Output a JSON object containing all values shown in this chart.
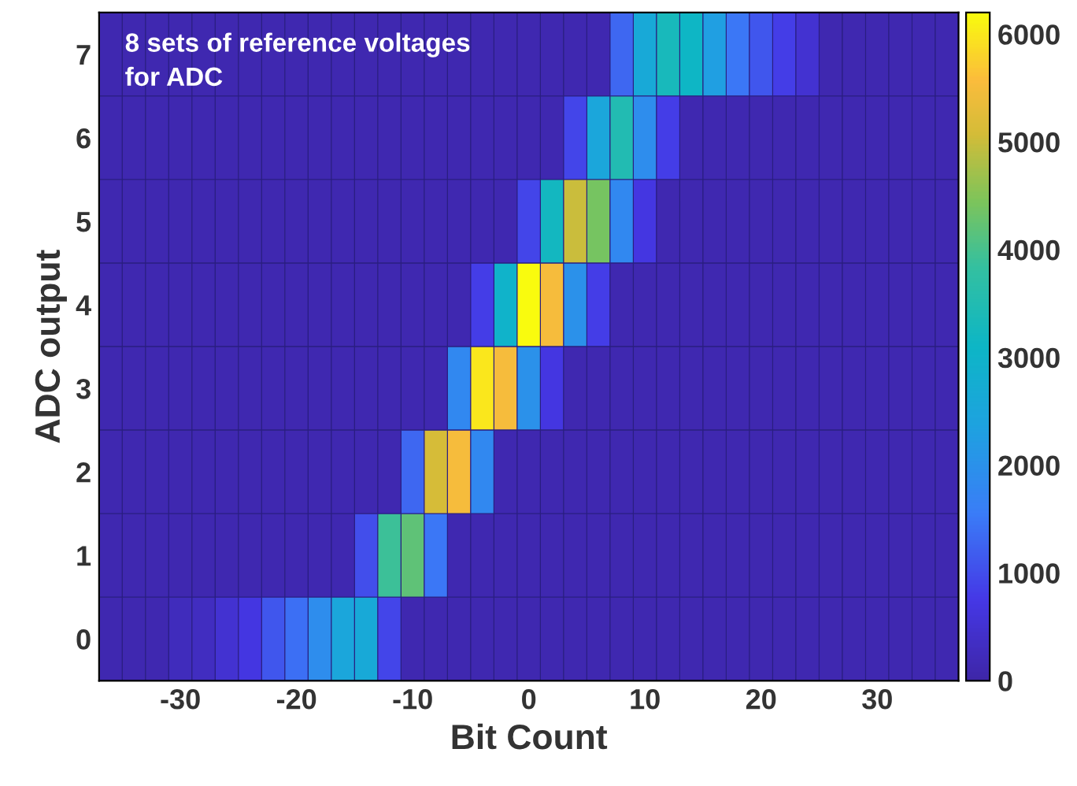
{
  "chart_data": {
    "type": "heatmap",
    "xlabel": "Bit Count",
    "ylabel": "ADC output",
    "annotations": [
      "8 sets of reference voltages\nfor ADC"
    ],
    "x": [
      -36,
      -34,
      -32,
      -30,
      -28,
      -26,
      -24,
      -22,
      -20,
      -18,
      -16,
      -14,
      -12,
      -10,
      -8,
      -6,
      -4,
      -2,
      0,
      2,
      4,
      6,
      8,
      10,
      12,
      14,
      16,
      18,
      20,
      22,
      24,
      26,
      28,
      30,
      32,
      34,
      36
    ],
    "xlim": [
      -37,
      37
    ],
    "xticks": [
      -30,
      -20,
      -10,
      0,
      10,
      20,
      30
    ],
    "y_categories": [
      "7",
      "6",
      "5",
      "4",
      "3",
      "2",
      "1",
      "0"
    ],
    "cells": [
      [
        100,
        100,
        100,
        100,
        100,
        100,
        100,
        100,
        100,
        100,
        100,
        100,
        100,
        100,
        100,
        100,
        100,
        100,
        100,
        100,
        100,
        100,
        1300,
        2600,
        3300,
        3100,
        2300,
        1500,
        1100,
        800,
        500,
        100,
        100,
        100,
        100,
        100,
        100
      ],
      [
        100,
        100,
        100,
        100,
        100,
        100,
        100,
        100,
        100,
        100,
        100,
        100,
        100,
        100,
        100,
        100,
        100,
        100,
        100,
        100,
        900,
        2500,
        3500,
        1900,
        800,
        100,
        100,
        100,
        100,
        100,
        100,
        100,
        100,
        100,
        100,
        100,
        100
      ],
      [
        100,
        100,
        100,
        100,
        100,
        100,
        100,
        100,
        100,
        100,
        100,
        100,
        100,
        100,
        100,
        100,
        100,
        100,
        900,
        3200,
        5000,
        4400,
        1800,
        700,
        100,
        100,
        100,
        100,
        100,
        100,
        100,
        100,
        100,
        100,
        100,
        100,
        100
      ],
      [
        100,
        100,
        100,
        100,
        100,
        100,
        100,
        100,
        100,
        100,
        100,
        100,
        100,
        100,
        100,
        100,
        800,
        3000,
        6200,
        5500,
        2000,
        800,
        100,
        100,
        100,
        100,
        100,
        100,
        100,
        100,
        100,
        100,
        100,
        100,
        100,
        100,
        100
      ],
      [
        100,
        100,
        100,
        100,
        100,
        100,
        100,
        100,
        100,
        100,
        100,
        100,
        100,
        100,
        100,
        1800,
        6000,
        5500,
        2000,
        700,
        100,
        100,
        100,
        100,
        100,
        100,
        100,
        100,
        100,
        100,
        100,
        100,
        100,
        100,
        100,
        100,
        100
      ],
      [
        100,
        100,
        100,
        100,
        100,
        100,
        100,
        100,
        100,
        100,
        100,
        100,
        100,
        1300,
        5100,
        5500,
        1800,
        100,
        100,
        100,
        100,
        100,
        100,
        100,
        100,
        100,
        100,
        100,
        100,
        100,
        100,
        100,
        100,
        100,
        100,
        100,
        100
      ],
      [
        100,
        100,
        100,
        100,
        100,
        100,
        100,
        100,
        100,
        100,
        100,
        1000,
        3900,
        4200,
        1500,
        100,
        100,
        100,
        100,
        100,
        100,
        100,
        100,
        100,
        100,
        100,
        100,
        100,
        100,
        100,
        100,
        100,
        100,
        100,
        100,
        100,
        100
      ],
      [
        100,
        100,
        100,
        250,
        300,
        500,
        700,
        1100,
        1400,
        1900,
        2500,
        2600,
        900,
        100,
        100,
        100,
        100,
        100,
        100,
        100,
        100,
        100,
        100,
        100,
        100,
        100,
        100,
        100,
        100,
        100,
        100,
        100,
        100,
        100,
        100,
        100,
        100
      ]
    ],
    "clim": [
      0,
      6200
    ],
    "cticks": [
      0,
      1000,
      2000,
      3000,
      4000,
      5000,
      6000
    ]
  }
}
